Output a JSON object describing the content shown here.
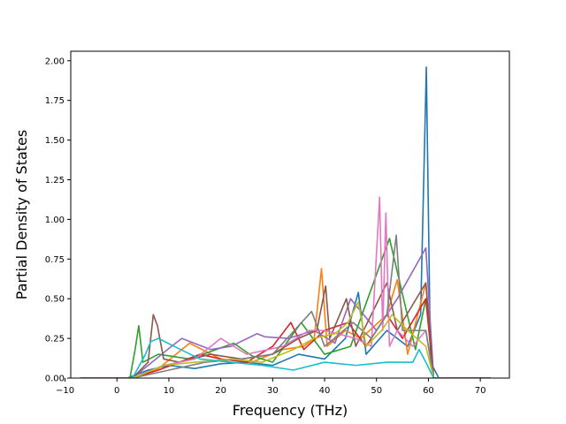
{
  "chart_data": {
    "type": "line",
    "title": "",
    "xlabel": "Frequency (THz)",
    "ylabel": "Partial Density of States",
    "xlim": [
      -8.9,
      75.6
    ],
    "ylim": [
      0.0,
      2.06
    ],
    "xticks": [
      -10,
      0,
      10,
      20,
      30,
      40,
      50,
      60,
      70
    ],
    "xtick_labels": [
      "−10",
      "0",
      "10",
      "20",
      "30",
      "40",
      "50",
      "60",
      "70"
    ],
    "yticks": [
      0.0,
      0.25,
      0.5,
      0.75,
      1.0,
      1.25,
      1.5,
      1.75,
      2.0
    ],
    "ytick_labels": [
      "0.00",
      "0.25",
      "0.50",
      "0.75",
      "1.00",
      "1.25",
      "1.50",
      "1.75",
      "2.00"
    ],
    "grid": false,
    "legend": "none",
    "palette": [
      "#1f77b4",
      "#ff7f0e",
      "#2ca02c",
      "#d62728",
      "#9467bd",
      "#8c564b",
      "#e377c2",
      "#7f7f7f",
      "#bcbd22",
      "#17becf"
    ],
    "series": [
      {
        "color": "#1f77b4",
        "x": [
          -7,
          2,
          6,
          10,
          15,
          20,
          25,
          30,
          35,
          40,
          44,
          46.5,
          48,
          52,
          56,
          58.5,
          59.6,
          60.4,
          62,
          72
        ],
        "y": [
          0,
          0,
          0.05,
          0.08,
          0.06,
          0.09,
          0.1,
          0.08,
          0.15,
          0.12,
          0.25,
          0.54,
          0.15,
          0.3,
          0.2,
          0.4,
          1.96,
          0.1,
          0,
          0
        ]
      },
      {
        "color": "#ff7f0e",
        "x": [
          -7,
          3,
          8,
          14,
          20,
          26,
          32,
          36,
          38,
          39.4,
          40.5,
          44,
          47,
          52,
          54,
          56,
          59.5,
          61,
          72
        ],
        "y": [
          0,
          0,
          0.06,
          0.22,
          0.12,
          0.1,
          0.18,
          0.2,
          0.25,
          0.69,
          0.2,
          0.3,
          0.25,
          0.4,
          0.62,
          0.15,
          0.6,
          0,
          0
        ]
      },
      {
        "color": "#2ca02c",
        "x": [
          -7,
          2.5,
          3.5,
          4.2,
          5,
          8,
          14,
          22.5,
          26,
          30,
          35.5,
          40,
          45,
          52.5,
          57.5,
          59.5,
          61,
          72
        ],
        "y": [
          0,
          0,
          0.18,
          0.33,
          0.1,
          0.15,
          0.12,
          0.22,
          0.14,
          0.1,
          0.35,
          0.15,
          0.2,
          0.88,
          0.18,
          0.5,
          0,
          0
        ]
      },
      {
        "color": "#d62728",
        "x": [
          -7,
          3,
          8,
          16,
          20,
          25,
          30,
          33.5,
          36,
          40,
          44.5,
          48,
          52,
          55,
          59.5,
          61,
          72
        ],
        "y": [
          0,
          0,
          0.05,
          0.15,
          0.12,
          0.1,
          0.2,
          0.35,
          0.18,
          0.3,
          0.35,
          0.2,
          0.4,
          0.25,
          0.5,
          0,
          0
        ]
      },
      {
        "color": "#9467bd",
        "x": [
          -7,
          3,
          10.5,
          12.5,
          18,
          22,
          27,
          28.5,
          33,
          38,
          42,
          45,
          50,
          54,
          59.5,
          61,
          72
        ],
        "y": [
          0,
          0,
          0.2,
          0.25,
          0.18,
          0.2,
          0.28,
          0.26,
          0.25,
          0.3,
          0.22,
          0.5,
          0.3,
          0.5,
          0.82,
          0,
          0
        ]
      },
      {
        "color": "#8c564b",
        "x": [
          -7,
          3,
          6,
          7,
          7.8,
          9,
          12,
          18,
          24,
          30,
          35,
          38.5,
          40.2,
          41,
          44.2,
          46,
          52,
          54,
          59.5,
          61,
          72
        ],
        "y": [
          0,
          0,
          0.1,
          0.4,
          0.33,
          0.12,
          0.1,
          0.15,
          0.12,
          0.15,
          0.25,
          0.3,
          0.58,
          0.25,
          0.5,
          0.2,
          0.6,
          0.3,
          0.6,
          0,
          0
        ]
      },
      {
        "color": "#e377c2",
        "x": [
          -7,
          3,
          9,
          15,
          20,
          25,
          32,
          37,
          40,
          46,
          49,
          50.6,
          51.2,
          51.8,
          52.5,
          54,
          57,
          59.5,
          61,
          72
        ],
        "y": [
          0,
          0,
          0.08,
          0.12,
          0.25,
          0.15,
          0.2,
          0.3,
          0.3,
          0.25,
          0.2,
          1.14,
          0.3,
          1.04,
          0.2,
          0.3,
          0.2,
          0.3,
          0,
          0
        ]
      },
      {
        "color": "#7f7f7f",
        "x": [
          -7,
          3,
          10,
          17,
          24,
          30,
          37.5,
          40,
          45.5,
          49,
          52,
          53.8,
          55,
          59.5,
          61,
          72
        ],
        "y": [
          0,
          0,
          0.05,
          0.1,
          0.12,
          0.15,
          0.42,
          0.2,
          0.35,
          0.25,
          0.4,
          0.9,
          0.3,
          0.3,
          0,
          0
        ]
      },
      {
        "color": "#bcbd22",
        "x": [
          -7,
          3,
          9,
          15,
          22,
          28,
          34,
          38,
          42,
          44.5,
          46.5,
          48,
          51,
          53,
          56,
          59.5,
          61,
          72
        ],
        "y": [
          0,
          0,
          0.08,
          0.1,
          0.12,
          0.1,
          0.18,
          0.25,
          0.28,
          0.35,
          0.48,
          0.2,
          0.3,
          0.4,
          0.3,
          0.2,
          0,
          0
        ]
      },
      {
        "color": "#17becf",
        "x": [
          -7,
          3,
          5.5,
          6.5,
          8,
          11,
          16,
          22,
          28,
          34,
          40,
          46,
          52,
          57,
          58.2,
          59.5,
          61,
          72
        ],
        "y": [
          0,
          0,
          0.15,
          0.23,
          0.25,
          0.2,
          0.12,
          0.1,
          0.08,
          0.05,
          0.1,
          0.08,
          0.1,
          0.1,
          0.18,
          0.1,
          0,
          0
        ]
      }
    ]
  }
}
